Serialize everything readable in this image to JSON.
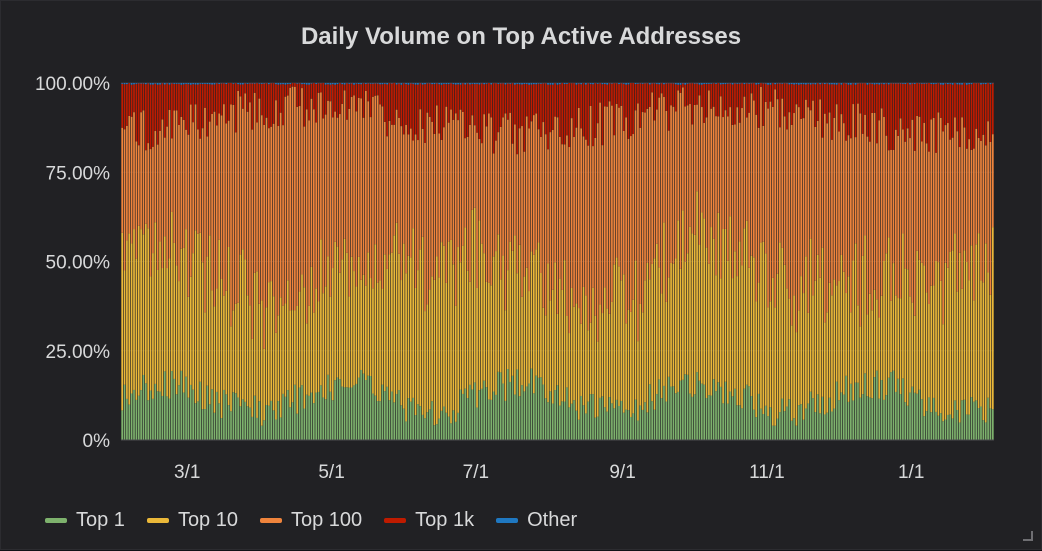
{
  "panel": {
    "title": "Daily Volume on Top Active Addresses"
  },
  "chart_data": {
    "type": "bar",
    "stacked": true,
    "title": "Daily Volume on Top Active Addresses",
    "xlabel": "",
    "ylabel": "",
    "y_ticks": [
      "0%",
      "25.00%",
      "50.00%",
      "75.00%",
      "100.00%"
    ],
    "y_tick_values": [
      0,
      25,
      50,
      75,
      100
    ],
    "ylim": [
      0,
      100
    ],
    "x_ticks": [
      "3/1",
      "5/1",
      "7/1",
      "9/1",
      "11/1",
      "1/1"
    ],
    "x_tick_dates": [
      "2019-03-01",
      "2019-05-01",
      "2019-07-01",
      "2019-09-01",
      "2019-11-01",
      "2020-01-01"
    ],
    "x_range": [
      "2019-02-01",
      "2020-02-05"
    ],
    "grid": true,
    "legend_position": "bottom-left",
    "series": [
      {
        "name": "Top 1",
        "color": "#7eb26d",
        "typical_share": 11,
        "range": [
          4,
          30
        ]
      },
      {
        "name": "Top 10",
        "color": "#eab839",
        "typical_share": 35,
        "range": [
          20,
          65
        ]
      },
      {
        "name": "Top 100",
        "color": "#ef843c",
        "typical_share": 43,
        "range": [
          30,
          60
        ]
      },
      {
        "name": "Top 1k",
        "color": "#bf1b00",
        "typical_share": 10,
        "range": [
          1,
          22
        ]
      },
      {
        "name": "Other",
        "color": "#1f78c1",
        "typical_share": 0.5,
        "range": [
          0,
          2
        ]
      }
    ]
  },
  "legend": [
    {
      "name": "Top 1",
      "color": "#7eb26d"
    },
    {
      "name": "Top 10",
      "color": "#eab839"
    },
    {
      "name": "Top 100",
      "color": "#ef843c"
    },
    {
      "name": "Top 1k",
      "color": "#bf1b00"
    },
    {
      "name": "Other",
      "color": "#1f78c1"
    }
  ]
}
